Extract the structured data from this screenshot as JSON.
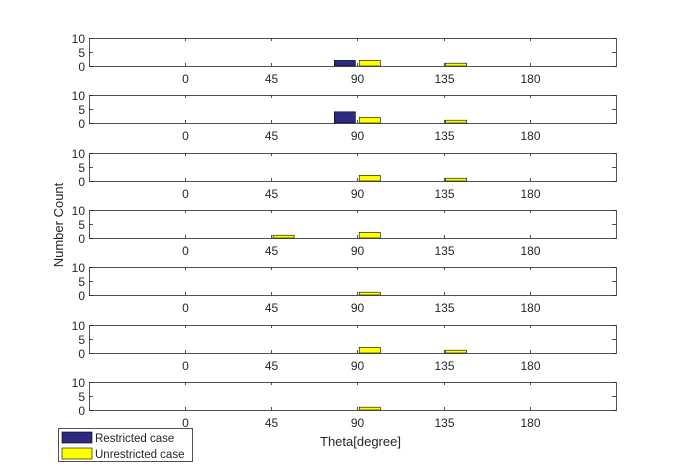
{
  "chart_data": {
    "type": "bar",
    "xlabel": "Theta[degree]",
    "ylabel": "Number Count",
    "xlim": [
      -50,
      225
    ],
    "ylim": [
      0,
      10
    ],
    "xticks": [
      0,
      45,
      90,
      135,
      180
    ],
    "yticks": [
      0,
      5,
      10
    ],
    "legend": {
      "placement": "bottom-left",
      "entries": [
        "Restricted case",
        "Unrestricted case"
      ]
    },
    "series_meta": [
      {
        "name": "Restricted case",
        "color": "#2e2a84",
        "offset": -6.5
      },
      {
        "name": "Unrestricted case",
        "color": "#ffff00",
        "offset": 6.5
      }
    ],
    "bar_width": 11,
    "panels": [
      {
        "bars": [
          {
            "series": 0,
            "x": 90,
            "value": 2
          },
          {
            "series": 1,
            "x": 90,
            "value": 2
          },
          {
            "series": 1,
            "x": 135,
            "value": 1
          }
        ]
      },
      {
        "bars": [
          {
            "series": 0,
            "x": 90,
            "value": 4
          },
          {
            "series": 1,
            "x": 90,
            "value": 2
          },
          {
            "series": 1,
            "x": 135,
            "value": 1
          }
        ]
      },
      {
        "bars": [
          {
            "series": 1,
            "x": 90,
            "value": 2
          },
          {
            "series": 1,
            "x": 135,
            "value": 1
          }
        ]
      },
      {
        "bars": [
          {
            "series": 1,
            "x": 45,
            "value": 1
          },
          {
            "series": 1,
            "x": 90,
            "value": 2
          }
        ]
      },
      {
        "bars": [
          {
            "series": 1,
            "x": 90,
            "value": 1
          }
        ]
      },
      {
        "bars": [
          {
            "series": 1,
            "x": 90,
            "value": 2
          },
          {
            "series": 1,
            "x": 135,
            "value": 1
          }
        ]
      },
      {
        "bars": [
          {
            "series": 1,
            "x": 90,
            "value": 1
          }
        ]
      }
    ]
  }
}
